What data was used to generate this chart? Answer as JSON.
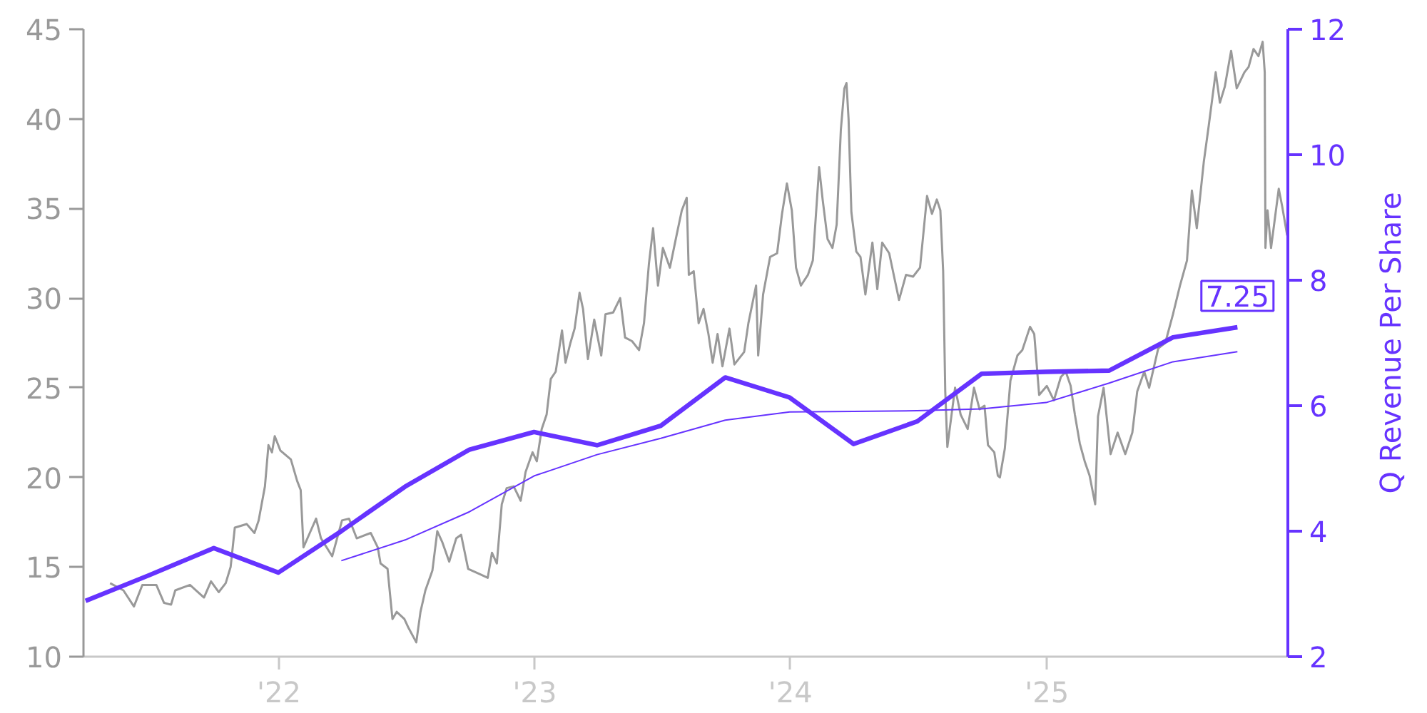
{
  "chart_data": {
    "type": "line",
    "xlim": [
      "2021-03-28",
      "2025-12-11"
    ],
    "xticks": [
      {
        "value": "2022-01-01",
        "label": "'22"
      },
      {
        "value": "2023-01-01",
        "label": "'23"
      },
      {
        "value": "2024-01-01",
        "label": "'24"
      },
      {
        "value": "2025-01-01",
        "label": "'25"
      }
    ],
    "ylim": [
      10,
      45
    ],
    "yticks": [
      10,
      15,
      20,
      25,
      30,
      35,
      40,
      45
    ],
    "y2lim": [
      2,
      12
    ],
    "y2ticks": [
      2,
      4,
      6,
      8,
      10,
      12
    ],
    "y2label": "Q Revenue Per Share",
    "grid": false,
    "series": [
      {
        "color": "#999999",
        "x": [
          "2021-05-05",
          "2021-05-24",
          "2021-06-08",
          "2021-06-20",
          "2021-07-10",
          "2021-07-21",
          "2021-07-31",
          "2021-08-06",
          "2021-08-27",
          "2021-09-16",
          "2021-09-26",
          "2021-10-07",
          "2021-10-17",
          "2021-10-24",
          "2021-10-30",
          "2021-11-16",
          "2021-11-27",
          "2021-12-03",
          "2021-12-12",
          "2021-12-17",
          "2021-12-22",
          "2021-12-26",
          "2022-01-03",
          "2022-01-18",
          "2022-01-27",
          "2022-02-01",
          "2022-02-05",
          "2022-02-14",
          "2022-02-23",
          "2022-03-02",
          "2022-03-18",
          "2022-04-01",
          "2022-04-11",
          "2022-04-22",
          "2022-05-12",
          "2022-05-22",
          "2022-05-26",
          "2022-06-05",
          "2022-06-12",
          "2022-06-18",
          "2022-06-29",
          "2022-07-05",
          "2022-07-16",
          "2022-07-22",
          "2022-07-29",
          "2022-08-08",
          "2022-08-15",
          "2022-08-22",
          "2022-09-01",
          "2022-09-11",
          "2022-09-18",
          "2022-09-28",
          "2022-10-15",
          "2022-10-26",
          "2022-11-01",
          "2022-11-08",
          "2022-11-15",
          "2022-11-22",
          "2022-12-02",
          "2022-12-12",
          "2022-12-19",
          "2022-12-29",
          "2023-01-04",
          "2023-01-11",
          "2023-01-18",
          "2023-01-24",
          "2023-01-31",
          "2023-02-09",
          "2023-02-14",
          "2023-02-21",
          "2023-02-27",
          "2023-03-06",
          "2023-03-11",
          "2023-03-18",
          "2023-03-27",
          "2023-04-06",
          "2023-04-12",
          "2023-04-23",
          "2023-05-03",
          "2023-05-10",
          "2023-05-20",
          "2023-05-30",
          "2023-06-06",
          "2023-06-13",
          "2023-06-19",
          "2023-06-26",
          "2023-07-03",
          "2023-07-13",
          "2023-07-23",
          "2023-07-30",
          "2023-08-06",
          "2023-08-09",
          "2023-08-16",
          "2023-08-23",
          "2023-08-30",
          "2023-09-06",
          "2023-09-12",
          "2023-09-19",
          "2023-09-26",
          "2023-10-06",
          "2023-10-13",
          "2023-10-27",
          "2023-11-02",
          "2023-11-13",
          "2023-11-16",
          "2023-11-23",
          "2023-12-03",
          "2023-12-13",
          "2023-12-20",
          "2023-12-27",
          "2024-01-03",
          "2024-01-09",
          "2024-01-16",
          "2024-01-26",
          "2024-02-02",
          "2024-02-11",
          "2024-02-16",
          "2024-02-23",
          "2024-03-01",
          "2024-03-07",
          "2024-03-13",
          "2024-03-18",
          "2024-03-21",
          "2024-03-24",
          "2024-03-28",
          "2024-04-04",
          "2024-04-10",
          "2024-04-17",
          "2024-04-27",
          "2024-05-04",
          "2024-05-11",
          "2024-05-21",
          "2024-05-28",
          "2024-06-04",
          "2024-06-14",
          "2024-06-24",
          "2024-07-04",
          "2024-07-14",
          "2024-07-21",
          "2024-07-28",
          "2024-08-02",
          "2024-08-06",
          "2024-08-09",
          "2024-08-12",
          "2024-08-18",
          "2024-08-23",
          "2024-08-31",
          "2024-09-10",
          "2024-09-19",
          "2024-09-27",
          "2024-10-04",
          "2024-10-09",
          "2024-10-18",
          "2024-10-23",
          "2024-10-26",
          "2024-11-02",
          "2024-11-10",
          "2024-11-20",
          "2024-11-27",
          "2024-12-08",
          "2024-12-14",
          "2024-12-21",
          "2025-01-01",
          "2025-01-11",
          "2025-01-21",
          "2025-01-28",
          "2025-02-04",
          "2025-02-10",
          "2025-02-17",
          "2025-02-24",
          "2025-03-03",
          "2025-03-11",
          "2025-03-15",
          "2025-03-23",
          "2025-04-02",
          "2025-04-12",
          "2025-04-23",
          "2025-05-03",
          "2025-05-10",
          "2025-05-20",
          "2025-05-27",
          "2025-06-09",
          "2025-06-19",
          "2025-06-30",
          "2025-07-10",
          "2025-07-20",
          "2025-07-27",
          "2025-08-03",
          "2025-08-13",
          "2025-08-20",
          "2025-08-30",
          "2025-09-05",
          "2025-09-12",
          "2025-09-21",
          "2025-09-29",
          "2025-10-10",
          "2025-10-16",
          "2025-10-23",
          "2025-10-30",
          "2025-11-05",
          "2025-11-08",
          "2025-11-09",
          "2025-11-12",
          "2025-11-17",
          "2025-11-28",
          "2025-12-03",
          "2025-12-10"
        ],
        "values": [
          14.1,
          13.7,
          12.8,
          14.0,
          14.0,
          13.0,
          12.9,
          13.7,
          14.0,
          13.3,
          14.2,
          13.6,
          14.1,
          15.0,
          17.2,
          17.4,
          16.9,
          17.6,
          19.5,
          21.8,
          21.4,
          22.3,
          21.5,
          21.0,
          19.8,
          19.3,
          16.1,
          16.9,
          17.7,
          16.6,
          15.6,
          17.6,
          17.7,
          16.6,
          16.9,
          16.1,
          15.2,
          14.9,
          12.1,
          12.5,
          12.1,
          11.6,
          10.8,
          12.5,
          13.7,
          14.8,
          17.0,
          16.4,
          15.3,
          16.6,
          16.8,
          14.9,
          14.6,
          14.4,
          15.8,
          15.2,
          18.5,
          19.4,
          19.5,
          18.7,
          20.3,
          21.4,
          20.9,
          22.7,
          23.5,
          25.5,
          25.9,
          28.2,
          26.4,
          27.5,
          28.3,
          30.3,
          29.4,
          26.6,
          28.8,
          26.8,
          29.1,
          29.2,
          30.0,
          27.8,
          27.6,
          27.1,
          28.6,
          31.9,
          33.9,
          30.7,
          32.8,
          31.7,
          33.6,
          34.9,
          35.6,
          31.3,
          31.5,
          28.6,
          29.4,
          28.0,
          26.4,
          28.0,
          26.2,
          28.3,
          26.3,
          27.0,
          28.6,
          30.7,
          26.8,
          30.2,
          32.3,
          32.5,
          34.7,
          36.4,
          34.9,
          31.7,
          30.7,
          31.3,
          32.1,
          37.3,
          35.5,
          33.3,
          32.8,
          34.1,
          39.4,
          41.7,
          42.0,
          40.0,
          34.8,
          32.6,
          32.3,
          30.2,
          33.1,
          30.5,
          33.1,
          32.5,
          31.2,
          29.9,
          31.3,
          31.2,
          31.7,
          35.7,
          34.7,
          35.5,
          34.9,
          31.5,
          24.8,
          21.7,
          23.5,
          25.0,
          23.5,
          22.7,
          25.0,
          23.8,
          24.0,
          21.8,
          21.4,
          20.1,
          20.0,
          21.6,
          25.4,
          26.8,
          27.1,
          28.4,
          28.0,
          24.6,
          25.1,
          24.3,
          25.6,
          25.9,
          25.1,
          23.5,
          21.9,
          20.9,
          20.1,
          18.5,
          23.4,
          25.0,
          21.3,
          22.5,
          21.3,
          22.5,
          24.8,
          25.9,
          25.0,
          27.2,
          27.5,
          29.1,
          30.7,
          32.1,
          36.0,
          33.9,
          37.6,
          39.6,
          42.6,
          40.9,
          41.8,
          43.8,
          41.7,
          42.6,
          42.9,
          43.9,
          43.5,
          44.3,
          42.6,
          32.8,
          34.9,
          32.8,
          36.1,
          35.1,
          33.5
        ]
      },
      {
        "color": "#6633ff",
        "axis": "y2",
        "x": [
          "2021-03-31",
          "2021-06-30",
          "2021-09-30",
          "2021-12-31",
          "2022-03-31",
          "2022-06-30",
          "2022-09-30",
          "2022-12-31",
          "2023-03-31",
          "2023-06-30",
          "2023-09-30",
          "2023-12-31",
          "2024-03-31",
          "2024-06-30",
          "2024-09-30",
          "2024-12-31",
          "2025-03-31",
          "2025-06-30",
          "2025-09-30"
        ],
        "values": [
          2.89,
          3.3,
          3.73,
          3.34,
          4.0,
          4.71,
          5.3,
          5.58,
          5.37,
          5.68,
          6.45,
          6.13,
          5.39,
          5.75,
          6.51,
          6.54,
          6.56,
          7.09,
          7.25
        ],
        "value_labels": [
          null,
          null,
          null,
          null,
          null,
          null,
          null,
          null,
          null,
          null,
          null,
          null,
          null,
          null,
          null,
          null,
          null,
          null,
          "7.25"
        ]
      },
      {
        "color": "#6633ff",
        "axis": "y2",
        "x": [
          "2022-03-31",
          "2022-06-30",
          "2022-09-30",
          "2022-12-31",
          "2023-03-31",
          "2023-06-30",
          "2023-09-30",
          "2023-12-31",
          "2024-03-31",
          "2024-06-30",
          "2024-09-30",
          "2024-12-31",
          "2025-03-31",
          "2025-06-30",
          "2025-09-30"
        ],
        "values": [
          3.53,
          3.86,
          4.31,
          4.88,
          5.22,
          5.48,
          5.77,
          5.9,
          5.91,
          5.92,
          5.95,
          6.05,
          6.36,
          6.7,
          6.86
        ]
      }
    ]
  }
}
